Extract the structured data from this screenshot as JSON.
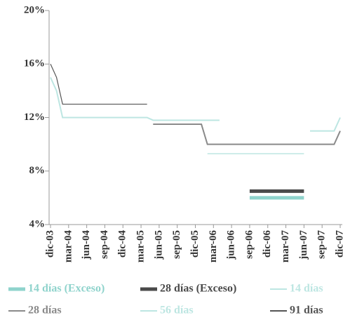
{
  "chart_data": {
    "type": "line",
    "categories": [
      "dic-03",
      null,
      null,
      "mar-04",
      null,
      null,
      "jun-04",
      null,
      null,
      "sep-04",
      null,
      null,
      "dic-04",
      null,
      null,
      "mar-05",
      null,
      null,
      "jun-05",
      null,
      null,
      "sep-05",
      null,
      null,
      "dic-05",
      null,
      null,
      "mar-06",
      null,
      null,
      "jun-06",
      null,
      null,
      "sep-06",
      null,
      null,
      "dic-06",
      null,
      null,
      "mar-07",
      null,
      null,
      "jun-07",
      null,
      null,
      "sep-07",
      null,
      null,
      "dic-07"
    ],
    "ylim": [
      4,
      20
    ],
    "yticks": [
      {
        "value": 4,
        "label": "4%"
      },
      {
        "value": 8,
        "label": "8%"
      },
      {
        "value": 12,
        "label": "12%"
      },
      {
        "value": 16,
        "label": "16%"
      },
      {
        "value": 20,
        "label": "20%"
      }
    ],
    "series": [
      {
        "name": "14 días (Exceso)",
        "color": "#8fd3cc",
        "width": 5,
        "values": [
          null,
          null,
          null,
          null,
          null,
          null,
          null,
          null,
          null,
          null,
          null,
          null,
          null,
          null,
          null,
          null,
          null,
          null,
          null,
          null,
          null,
          null,
          null,
          null,
          null,
          null,
          null,
          null,
          null,
          null,
          null,
          null,
          null,
          6,
          6,
          6,
          6,
          6,
          6,
          6,
          6,
          6,
          6,
          null,
          null,
          null,
          null,
          null,
          null
        ]
      },
      {
        "name": "28 días (Exceso)",
        "color": "#4a4a4a",
        "width": 5,
        "values": [
          null,
          null,
          null,
          null,
          null,
          null,
          null,
          null,
          null,
          null,
          null,
          null,
          null,
          null,
          null,
          null,
          null,
          null,
          null,
          null,
          null,
          null,
          null,
          null,
          null,
          null,
          null,
          null,
          null,
          null,
          null,
          null,
          null,
          6.5,
          6.5,
          6.5,
          6.5,
          6.5,
          6.5,
          6.5,
          6.5,
          6.5,
          6.5,
          null,
          null,
          null,
          null,
          null,
          null
        ]
      },
      {
        "name": "14 días",
        "color": "#bde6e2",
        "width": 2,
        "values": [
          15,
          14,
          12,
          12,
          12,
          12,
          12,
          12,
          12,
          12,
          12,
          12,
          12,
          12,
          12,
          12,
          12,
          11.8,
          11.8,
          11.8,
          11.8,
          11.8,
          11.8,
          11.8,
          11.8,
          11.8,
          11.8,
          11.8,
          11.8,
          null,
          null,
          null,
          null,
          null,
          null,
          null,
          null,
          null,
          null,
          null,
          null,
          null,
          null,
          11,
          11,
          11,
          11,
          11,
          12
        ]
      },
      {
        "name": "28 días",
        "color": "#8a8a8a",
        "width": 2,
        "values": [
          null,
          null,
          null,
          null,
          null,
          null,
          null,
          null,
          null,
          null,
          null,
          null,
          null,
          null,
          null,
          null,
          null,
          11.5,
          11.5,
          11.5,
          11.5,
          11.5,
          11.5,
          11.5,
          11.5,
          11.5,
          10,
          10,
          10,
          10,
          10,
          10,
          10,
          10,
          10,
          10,
          10,
          10,
          10,
          10,
          10,
          10,
          10,
          10,
          10,
          10,
          10,
          10,
          11
        ]
      },
      {
        "name": "56 días",
        "color": "#bde6e2",
        "width": 1.5,
        "values": [
          null,
          null,
          null,
          null,
          null,
          null,
          null,
          null,
          null,
          null,
          null,
          null,
          null,
          null,
          null,
          null,
          null,
          null,
          null,
          null,
          null,
          null,
          null,
          null,
          null,
          null,
          9.3,
          9.3,
          9.3,
          9.3,
          9.3,
          9.3,
          9.3,
          9.3,
          9.3,
          9.3,
          9.3,
          9.3,
          9.3,
          9.3,
          9.3,
          9.3,
          9.3,
          null,
          null,
          null,
          null,
          null,
          null
        ]
      },
      {
        "name": "91 días",
        "color": "#555555",
        "width": 1.2,
        "values": [
          16,
          15,
          13,
          13,
          13,
          13,
          13,
          13,
          13,
          13,
          13,
          13,
          13,
          13,
          13,
          13,
          13,
          null,
          null,
          null,
          null,
          null,
          null,
          null,
          null,
          null,
          null,
          null,
          null,
          null,
          null,
          null,
          null,
          null,
          null,
          null,
          null,
          null,
          null,
          null,
          null,
          null,
          null,
          null,
          null,
          null,
          null,
          null,
          null
        ]
      }
    ]
  }
}
